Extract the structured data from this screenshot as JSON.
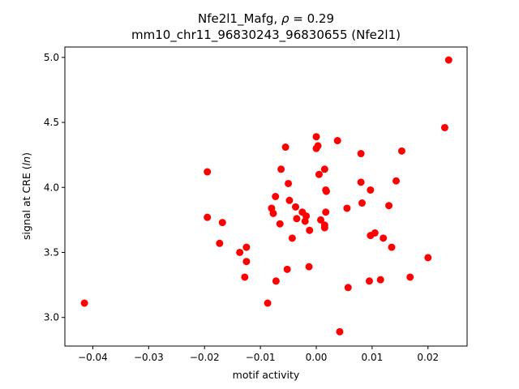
{
  "chart_data": {
    "type": "scatter",
    "title_line1_prefix": "Nfe2l1_Mafg, ",
    "title_line1_rho": "ρ",
    "title_line1_suffix": " = 0.29",
    "title_line2": "mm10_chr11_96830243_96830655 (Nfe2l1)",
    "xlabel": "motif activity",
    "ylabel_prefix": "signal at CRE (",
    "ylabel_italic": "ln",
    "ylabel_suffix": ")",
    "xlim": [
      -0.045,
      0.027
    ],
    "ylim": [
      2.78,
      5.08
    ],
    "xticks": [
      -0.04,
      -0.03,
      -0.02,
      -0.01,
      0.0,
      0.01,
      0.02
    ],
    "xtick_labels": [
      "−0.04",
      "−0.03",
      "−0.02",
      "−0.01",
      "0.00",
      "0.01",
      "0.02"
    ],
    "yticks": [
      3.0,
      3.5,
      4.0,
      4.5,
      5.0
    ],
    "ytick_labels": [
      "3.0",
      "3.5",
      "4.0",
      "4.5",
      "5.0"
    ],
    "marker_color": "#ff0000",
    "grid": false,
    "points": [
      {
        "x": -0.0415,
        "y": 3.11
      },
      {
        "x": -0.0195,
        "y": 4.12
      },
      {
        "x": -0.0195,
        "y": 3.77
      },
      {
        "x": -0.0168,
        "y": 3.73
      },
      {
        "x": -0.0173,
        "y": 3.57
      },
      {
        "x": -0.0137,
        "y": 3.5
      },
      {
        "x": -0.0125,
        "y": 3.54
      },
      {
        "x": -0.0125,
        "y": 3.43
      },
      {
        "x": -0.0128,
        "y": 3.31
      },
      {
        "x": -0.0087,
        "y": 3.11
      },
      {
        "x": -0.008,
        "y": 3.84
      },
      {
        "x": -0.0077,
        "y": 3.8
      },
      {
        "x": -0.0073,
        "y": 3.93
      },
      {
        "x": -0.0072,
        "y": 3.28
      },
      {
        "x": -0.0065,
        "y": 3.72
      },
      {
        "x": -0.0063,
        "y": 4.14
      },
      {
        "x": -0.0055,
        "y": 4.31
      },
      {
        "x": -0.005,
        "y": 4.03
      },
      {
        "x": -0.0048,
        "y": 3.9
      },
      {
        "x": -0.0052,
        "y": 3.37
      },
      {
        "x": -0.0043,
        "y": 3.61
      },
      {
        "x": -0.0037,
        "y": 3.85
      },
      {
        "x": -0.0035,
        "y": 3.76
      },
      {
        "x": -0.0025,
        "y": 3.81
      },
      {
        "x": -0.002,
        "y": 3.74
      },
      {
        "x": -0.0018,
        "y": 3.78
      },
      {
        "x": -0.0012,
        "y": 3.67
      },
      {
        "x": -0.0013,
        "y": 3.39
      },
      {
        "x": 0.0,
        "y": 4.39
      },
      {
        "x": 0.0,
        "y": 4.3
      },
      {
        "x": 0.0003,
        "y": 4.32
      },
      {
        "x": 0.0005,
        "y": 4.1
      },
      {
        "x": 0.0008,
        "y": 3.75
      },
      {
        "x": 0.0015,
        "y": 4.14
      },
      {
        "x": 0.0017,
        "y": 3.98
      },
      {
        "x": 0.0018,
        "y": 3.97
      },
      {
        "x": 0.0017,
        "y": 3.81
      },
      {
        "x": 0.0015,
        "y": 3.71
      },
      {
        "x": 0.0015,
        "y": 3.69
      },
      {
        "x": 0.0038,
        "y": 4.36
      },
      {
        "x": 0.0042,
        "y": 2.89
      },
      {
        "x": 0.0055,
        "y": 3.84
      },
      {
        "x": 0.0057,
        "y": 3.23
      },
      {
        "x": 0.008,
        "y": 4.26
      },
      {
        "x": 0.008,
        "y": 4.04
      },
      {
        "x": 0.0082,
        "y": 3.88
      },
      {
        "x": 0.0097,
        "y": 3.98
      },
      {
        "x": 0.0097,
        "y": 3.63
      },
      {
        "x": 0.0095,
        "y": 3.28
      },
      {
        "x": 0.0105,
        "y": 3.65
      },
      {
        "x": 0.0115,
        "y": 3.29
      },
      {
        "x": 0.012,
        "y": 3.61
      },
      {
        "x": 0.013,
        "y": 3.86
      },
      {
        "x": 0.0135,
        "y": 3.54
      },
      {
        "x": 0.0143,
        "y": 4.05
      },
      {
        "x": 0.0153,
        "y": 4.28
      },
      {
        "x": 0.0168,
        "y": 3.31
      },
      {
        "x": 0.02,
        "y": 3.46
      },
      {
        "x": 0.023,
        "y": 4.46
      },
      {
        "x": 0.0237,
        "y": 4.98
      }
    ]
  }
}
